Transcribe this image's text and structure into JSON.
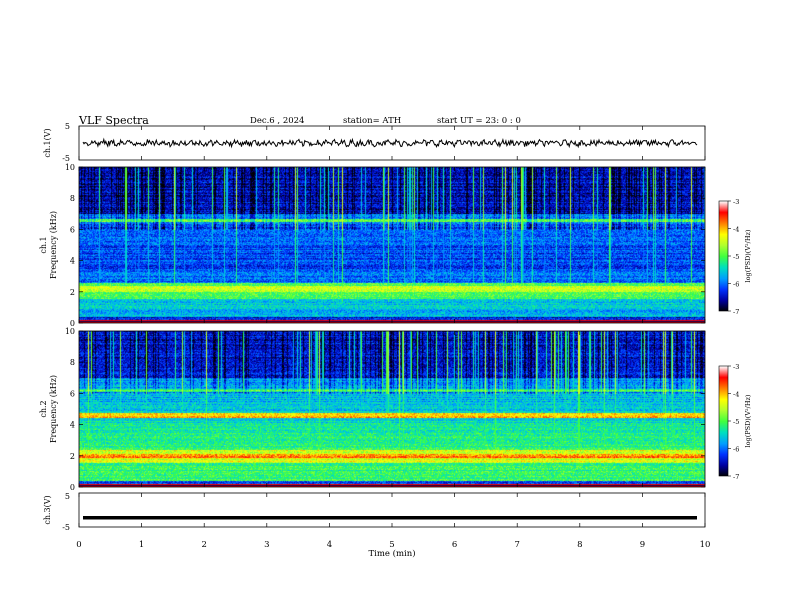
{
  "header": {
    "title": "VLF  Spectra",
    "date": "Dec.6  , 2024",
    "station": "station= ATH",
    "start": "start  UT  =   23: 0  : 0"
  },
  "chart_data": [
    {
      "type": "line",
      "name": "ch1-waveform",
      "ylabel": "ch.1(V)",
      "yticks": [
        "5",
        "-5"
      ],
      "ylim": [
        -5,
        5
      ],
      "xlim": [
        0,
        10
      ],
      "baseline": 0,
      "note_trace": "noisy waveform around 0 V, amplitude about ±1 V"
    },
    {
      "type": "heatmap",
      "name": "ch1-spectrogram",
      "ylabel_top": "ch.1",
      "ylabel": "Frequency  (kHz)",
      "ylim": [
        0,
        10
      ],
      "yticks": [
        "0",
        "2",
        "4",
        "6",
        "8",
        "10"
      ],
      "xlim": [
        0,
        10
      ],
      "colorbar": {
        "label": "log(PSD)(V²/Hz)",
        "ticks": [
          "-3",
          "-4",
          "-5",
          "-6",
          "-7"
        ],
        "range": [
          -7,
          -3
        ]
      }
    },
    {
      "type": "heatmap",
      "name": "ch2-spectrogram",
      "ylabel_top": "ch.2",
      "ylabel": "Frequency  (kHz)",
      "ylim": [
        0,
        10
      ],
      "yticks": [
        "0",
        "2",
        "4",
        "6",
        "8",
        "10"
      ],
      "xlim": [
        0,
        10
      ],
      "colorbar": {
        "label": "log(PSD)(V²/Hz)",
        "ticks": [
          "-3",
          "-4",
          "-5",
          "-6",
          "-7"
        ],
        "range": [
          -7,
          -3
        ]
      }
    },
    {
      "type": "line",
      "name": "ch3-waveform",
      "ylabel": "ch.3(V)",
      "yticks": [
        "5",
        "-5"
      ],
      "ylim": [
        -5,
        5
      ],
      "xlim": [
        0,
        10
      ],
      "baseline": -2.3
    }
  ],
  "xaxis": {
    "label": "Time  (min)",
    "ticks": [
      "0",
      "1",
      "2",
      "3",
      "4",
      "5",
      "6",
      "7",
      "8",
      "9",
      "10"
    ]
  },
  "colors": {
    "colormap": [
      "#000000",
      "#0000a0",
      "#0033ff",
      "#00a0ff",
      "#00e0c0",
      "#40ff40",
      "#b0ff30",
      "#ffff00",
      "#ff8000",
      "#ff0000",
      "#ffffff"
    ]
  }
}
